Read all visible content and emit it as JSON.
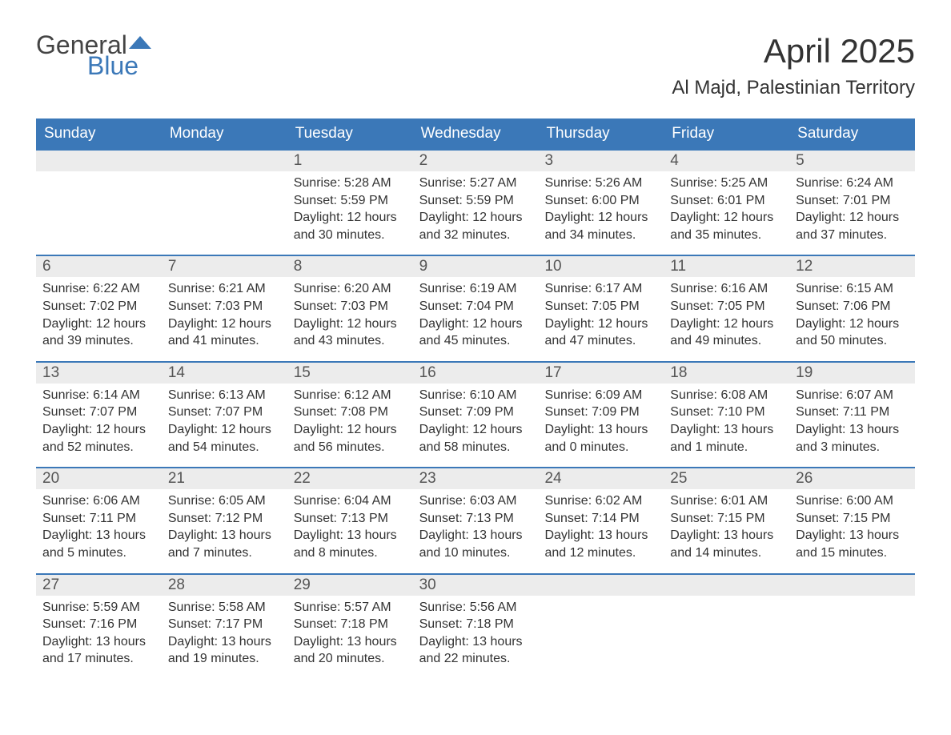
{
  "logo": {
    "text1": "General",
    "text2": "Blue",
    "arrow_color": "#3b78b8"
  },
  "title": "April 2025",
  "location": "Al Majd, Palestinian Territory",
  "day_names": [
    "Sunday",
    "Monday",
    "Tuesday",
    "Wednesday",
    "Thursday",
    "Friday",
    "Saturday"
  ],
  "colors": {
    "header_bg": "#3b78b8",
    "header_text": "#ffffff",
    "daynum_bg": "#ececec",
    "border": "#3b78b8",
    "text": "#333333"
  },
  "weeks": [
    [
      {
        "num": "",
        "sunrise": "",
        "sunset": "",
        "daylight1": "",
        "daylight2": ""
      },
      {
        "num": "",
        "sunrise": "",
        "sunset": "",
        "daylight1": "",
        "daylight2": ""
      },
      {
        "num": "1",
        "sunrise": "Sunrise: 5:28 AM",
        "sunset": "Sunset: 5:59 PM",
        "daylight1": "Daylight: 12 hours",
        "daylight2": "and 30 minutes."
      },
      {
        "num": "2",
        "sunrise": "Sunrise: 5:27 AM",
        "sunset": "Sunset: 5:59 PM",
        "daylight1": "Daylight: 12 hours",
        "daylight2": "and 32 minutes."
      },
      {
        "num": "3",
        "sunrise": "Sunrise: 5:26 AM",
        "sunset": "Sunset: 6:00 PM",
        "daylight1": "Daylight: 12 hours",
        "daylight2": "and 34 minutes."
      },
      {
        "num": "4",
        "sunrise": "Sunrise: 5:25 AM",
        "sunset": "Sunset: 6:01 PM",
        "daylight1": "Daylight: 12 hours",
        "daylight2": "and 35 minutes."
      },
      {
        "num": "5",
        "sunrise": "Sunrise: 6:24 AM",
        "sunset": "Sunset: 7:01 PM",
        "daylight1": "Daylight: 12 hours",
        "daylight2": "and 37 minutes."
      }
    ],
    [
      {
        "num": "6",
        "sunrise": "Sunrise: 6:22 AM",
        "sunset": "Sunset: 7:02 PM",
        "daylight1": "Daylight: 12 hours",
        "daylight2": "and 39 minutes."
      },
      {
        "num": "7",
        "sunrise": "Sunrise: 6:21 AM",
        "sunset": "Sunset: 7:03 PM",
        "daylight1": "Daylight: 12 hours",
        "daylight2": "and 41 minutes."
      },
      {
        "num": "8",
        "sunrise": "Sunrise: 6:20 AM",
        "sunset": "Sunset: 7:03 PM",
        "daylight1": "Daylight: 12 hours",
        "daylight2": "and 43 minutes."
      },
      {
        "num": "9",
        "sunrise": "Sunrise: 6:19 AM",
        "sunset": "Sunset: 7:04 PM",
        "daylight1": "Daylight: 12 hours",
        "daylight2": "and 45 minutes."
      },
      {
        "num": "10",
        "sunrise": "Sunrise: 6:17 AM",
        "sunset": "Sunset: 7:05 PM",
        "daylight1": "Daylight: 12 hours",
        "daylight2": "and 47 minutes."
      },
      {
        "num": "11",
        "sunrise": "Sunrise: 6:16 AM",
        "sunset": "Sunset: 7:05 PM",
        "daylight1": "Daylight: 12 hours",
        "daylight2": "and 49 minutes."
      },
      {
        "num": "12",
        "sunrise": "Sunrise: 6:15 AM",
        "sunset": "Sunset: 7:06 PM",
        "daylight1": "Daylight: 12 hours",
        "daylight2": "and 50 minutes."
      }
    ],
    [
      {
        "num": "13",
        "sunrise": "Sunrise: 6:14 AM",
        "sunset": "Sunset: 7:07 PM",
        "daylight1": "Daylight: 12 hours",
        "daylight2": "and 52 minutes."
      },
      {
        "num": "14",
        "sunrise": "Sunrise: 6:13 AM",
        "sunset": "Sunset: 7:07 PM",
        "daylight1": "Daylight: 12 hours",
        "daylight2": "and 54 minutes."
      },
      {
        "num": "15",
        "sunrise": "Sunrise: 6:12 AM",
        "sunset": "Sunset: 7:08 PM",
        "daylight1": "Daylight: 12 hours",
        "daylight2": "and 56 minutes."
      },
      {
        "num": "16",
        "sunrise": "Sunrise: 6:10 AM",
        "sunset": "Sunset: 7:09 PM",
        "daylight1": "Daylight: 12 hours",
        "daylight2": "and 58 minutes."
      },
      {
        "num": "17",
        "sunrise": "Sunrise: 6:09 AM",
        "sunset": "Sunset: 7:09 PM",
        "daylight1": "Daylight: 13 hours",
        "daylight2": "and 0 minutes."
      },
      {
        "num": "18",
        "sunrise": "Sunrise: 6:08 AM",
        "sunset": "Sunset: 7:10 PM",
        "daylight1": "Daylight: 13 hours",
        "daylight2": "and 1 minute."
      },
      {
        "num": "19",
        "sunrise": "Sunrise: 6:07 AM",
        "sunset": "Sunset: 7:11 PM",
        "daylight1": "Daylight: 13 hours",
        "daylight2": "and 3 minutes."
      }
    ],
    [
      {
        "num": "20",
        "sunrise": "Sunrise: 6:06 AM",
        "sunset": "Sunset: 7:11 PM",
        "daylight1": "Daylight: 13 hours",
        "daylight2": "and 5 minutes."
      },
      {
        "num": "21",
        "sunrise": "Sunrise: 6:05 AM",
        "sunset": "Sunset: 7:12 PM",
        "daylight1": "Daylight: 13 hours",
        "daylight2": "and 7 minutes."
      },
      {
        "num": "22",
        "sunrise": "Sunrise: 6:04 AM",
        "sunset": "Sunset: 7:13 PM",
        "daylight1": "Daylight: 13 hours",
        "daylight2": "and 8 minutes."
      },
      {
        "num": "23",
        "sunrise": "Sunrise: 6:03 AM",
        "sunset": "Sunset: 7:13 PM",
        "daylight1": "Daylight: 13 hours",
        "daylight2": "and 10 minutes."
      },
      {
        "num": "24",
        "sunrise": "Sunrise: 6:02 AM",
        "sunset": "Sunset: 7:14 PM",
        "daylight1": "Daylight: 13 hours",
        "daylight2": "and 12 minutes."
      },
      {
        "num": "25",
        "sunrise": "Sunrise: 6:01 AM",
        "sunset": "Sunset: 7:15 PM",
        "daylight1": "Daylight: 13 hours",
        "daylight2": "and 14 minutes."
      },
      {
        "num": "26",
        "sunrise": "Sunrise: 6:00 AM",
        "sunset": "Sunset: 7:15 PM",
        "daylight1": "Daylight: 13 hours",
        "daylight2": "and 15 minutes."
      }
    ],
    [
      {
        "num": "27",
        "sunrise": "Sunrise: 5:59 AM",
        "sunset": "Sunset: 7:16 PM",
        "daylight1": "Daylight: 13 hours",
        "daylight2": "and 17 minutes."
      },
      {
        "num": "28",
        "sunrise": "Sunrise: 5:58 AM",
        "sunset": "Sunset: 7:17 PM",
        "daylight1": "Daylight: 13 hours",
        "daylight2": "and 19 minutes."
      },
      {
        "num": "29",
        "sunrise": "Sunrise: 5:57 AM",
        "sunset": "Sunset: 7:18 PM",
        "daylight1": "Daylight: 13 hours",
        "daylight2": "and 20 minutes."
      },
      {
        "num": "30",
        "sunrise": "Sunrise: 5:56 AM",
        "sunset": "Sunset: 7:18 PM",
        "daylight1": "Daylight: 13 hours",
        "daylight2": "and 22 minutes."
      },
      {
        "num": "",
        "sunrise": "",
        "sunset": "",
        "daylight1": "",
        "daylight2": ""
      },
      {
        "num": "",
        "sunrise": "",
        "sunset": "",
        "daylight1": "",
        "daylight2": ""
      },
      {
        "num": "",
        "sunrise": "",
        "sunset": "",
        "daylight1": "",
        "daylight2": ""
      }
    ]
  ]
}
